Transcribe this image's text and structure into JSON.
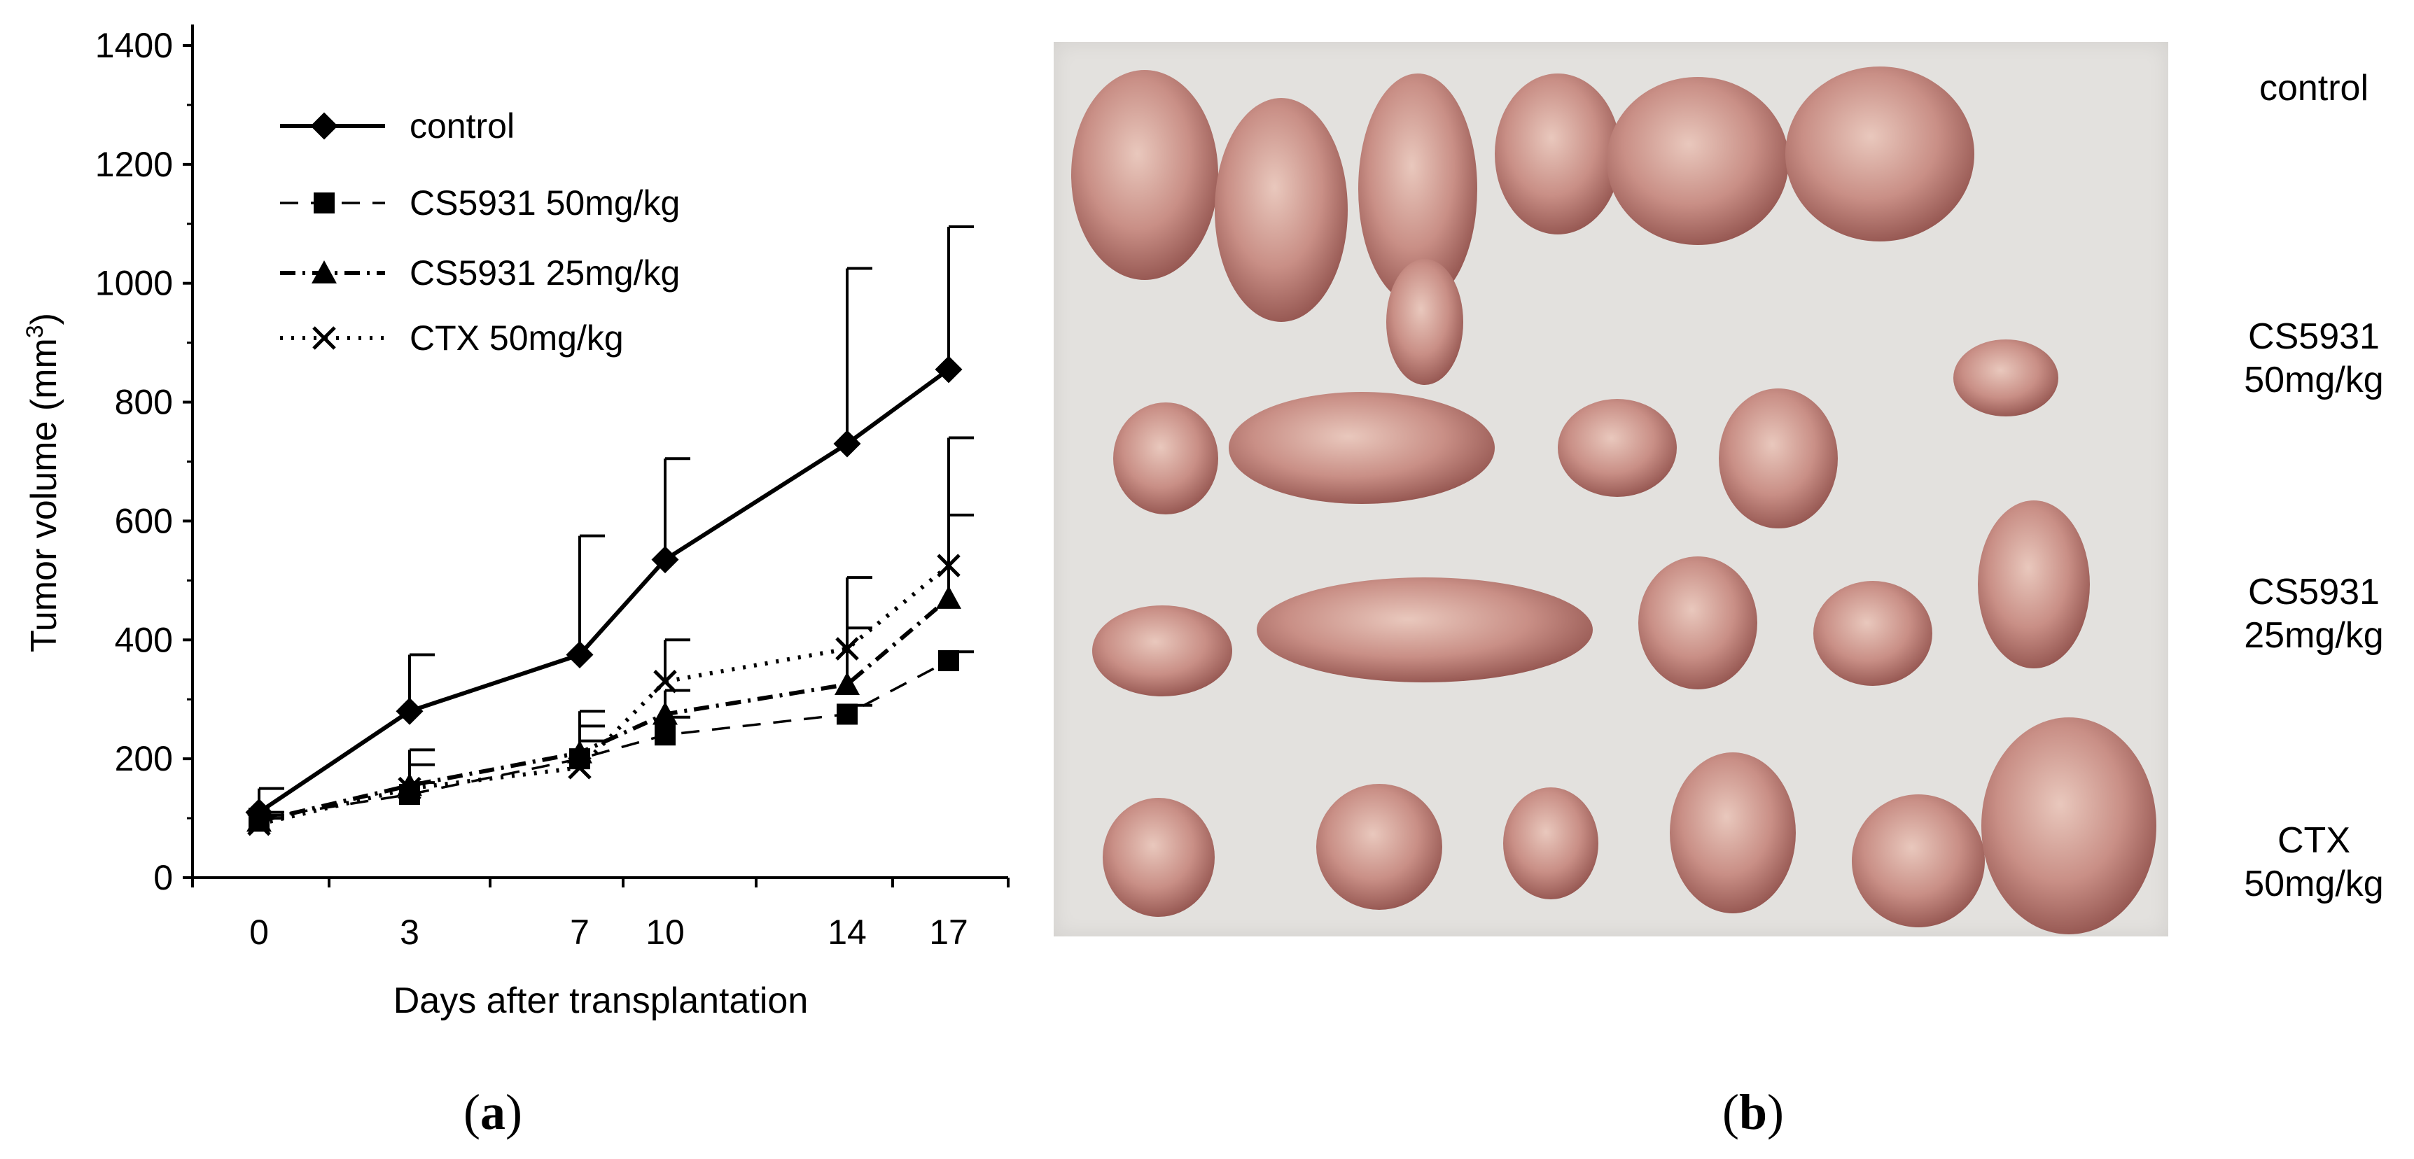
{
  "chart_data": {
    "type": "line",
    "xlabel": "Days after transplantation",
    "ylabel": "Tumor volume (mm",
    "ylabel_sup": "3",
    "ylabel_close": ")",
    "x": [
      0,
      3,
      7,
      10,
      14,
      17
    ],
    "categories": [
      "0",
      "3",
      "7",
      "10",
      "14",
      "17"
    ],
    "ylim": [
      0,
      1400
    ],
    "yticks": [
      0,
      200,
      400,
      600,
      800,
      1000,
      1200,
      1400
    ],
    "grid": false,
    "legend_position": "top-left",
    "series": [
      {
        "name": "control",
        "marker": "diamond",
        "dash": "solid",
        "values": [
          110,
          280,
          375,
          535,
          730,
          855
        ],
        "error_upper": [
          150,
          375,
          575,
          705,
          1025,
          1095
        ]
      },
      {
        "name": "CS5931 50mg/kg",
        "marker": "square",
        "dash": "dashed",
        "values": [
          100,
          140,
          200,
          240,
          275,
          365
        ],
        "error_upper": [
          110,
          160,
          230,
          270,
          290,
          380
        ]
      },
      {
        "name": "CS5931 25mg/kg",
        "marker": "triangle",
        "dash": "dash-dot",
        "values": [
          95,
          155,
          210,
          275,
          325,
          470
        ],
        "error_upper": [
          105,
          215,
          280,
          315,
          420,
          610
        ]
      },
      {
        "name": "CTX 50mg/kg",
        "marker": "x",
        "dash": "dotted",
        "values": [
          90,
          150,
          185,
          330,
          385,
          525
        ],
        "error_upper": [
          100,
          190,
          255,
          400,
          505,
          740
        ]
      }
    ]
  },
  "panels": {
    "a_label": "a",
    "b_label": "b"
  },
  "photo_rows": [
    {
      "line1": "control",
      "line2": ""
    },
    {
      "line1": "CS5931",
      "line2": "50mg/kg"
    },
    {
      "line1": "CS5931",
      "line2": "25mg/kg"
    },
    {
      "line1": "CTX",
      "line2": "50mg/kg"
    }
  ]
}
